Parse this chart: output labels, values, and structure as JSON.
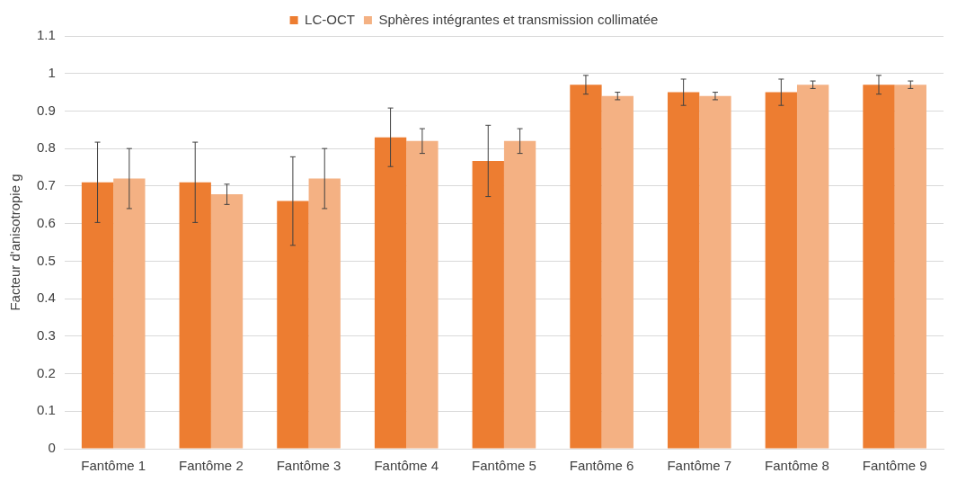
{
  "chart_data": {
    "type": "bar",
    "ylabel": "Facteur d'anisotropie g",
    "categories": [
      "Fantôme 1",
      "Fantôme 2",
      "Fantôme 3",
      "Fantôme 4",
      "Fantôme 5",
      "Fantôme 6",
      "Fantôme 7",
      "Fantôme 8",
      "Fantôme 9"
    ],
    "series": [
      {
        "name": "LC-OCT",
        "color": "#ed7d31",
        "values": [
          0.71,
          0.71,
          0.66,
          0.83,
          0.767,
          0.97,
          0.95,
          0.95,
          0.97
        ],
        "errors": [
          0.107,
          0.107,
          0.118,
          0.078,
          0.095,
          0.025,
          0.035,
          0.035,
          0.025
        ]
      },
      {
        "name": "Sphères intégrantes et transmission collimatée",
        "color": "#f4b183",
        "values": [
          0.72,
          0.678,
          0.72,
          0.82,
          0.82,
          0.94,
          0.94,
          0.97,
          0.97
        ],
        "errors": [
          0.08,
          0.027,
          0.08,
          0.033,
          0.033,
          0.01,
          0.01,
          0.01,
          0.01
        ]
      }
    ],
    "ylim": [
      0,
      1.1
    ],
    "yticks": [
      0,
      0.1,
      0.2,
      0.3,
      0.4,
      0.5,
      0.6,
      0.7,
      0.8,
      0.9,
      1,
      1.1
    ],
    "grid": "y",
    "legend": "top"
  }
}
